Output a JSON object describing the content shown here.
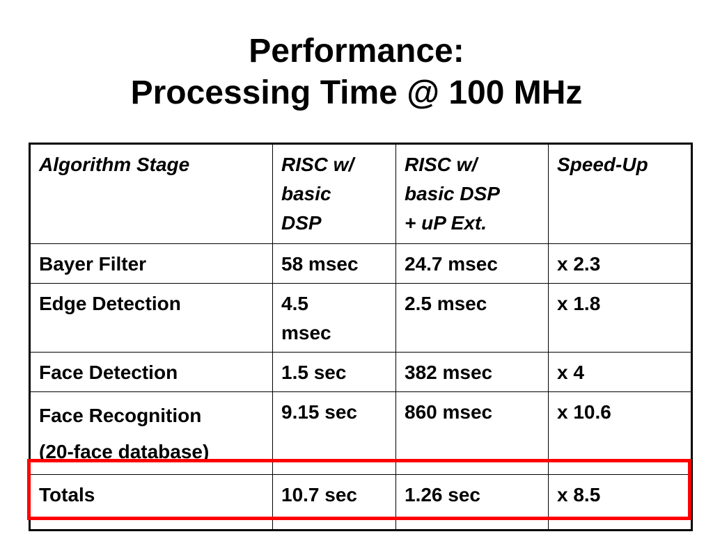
{
  "slide": {
    "title_line1": "Performance:",
    "title_line2": "Processing Time @ 100 MHz"
  },
  "table": {
    "headers": [
      [
        "Algorithm Stage"
      ],
      [
        "RISC w/",
        "basic",
        "DSP"
      ],
      [
        "RISC w/",
        "basic DSP",
        "+ uP Ext."
      ],
      [
        "Speed-Up"
      ]
    ],
    "rows": [
      {
        "stage": [
          "Bayer Filter"
        ],
        "risc": [
          "58 msec"
        ],
        "risc_ext": [
          "24.7 msec"
        ],
        "speedup": [
          "x 2.3"
        ]
      },
      {
        "stage": [
          "Edge Detection"
        ],
        "risc": [
          "4.5",
          "msec"
        ],
        "risc_ext": [
          "2.5 msec"
        ],
        "speedup": [
          "x 1.8"
        ]
      },
      {
        "stage": [
          "Face Detection"
        ],
        "risc": [
          "1.5 sec"
        ],
        "risc_ext": [
          "382 msec"
        ],
        "speedup": [
          "x 4"
        ]
      },
      {
        "stage": [
          "Face Recognition",
          "(20-face database)"
        ],
        "risc": [
          "9.15 sec"
        ],
        "risc_ext": [
          "860 msec"
        ],
        "speedup": [
          "x 10.6"
        ]
      },
      {
        "stage": [
          "Totals"
        ],
        "risc": [
          "10.7 sec"
        ],
        "risc_ext": [
          "1.26 sec"
        ],
        "speedup": [
          "x 8.5"
        ]
      }
    ]
  },
  "colors": {
    "highlight_border": "#ff0000",
    "table_border": "#000000",
    "background": "#ffffff"
  }
}
